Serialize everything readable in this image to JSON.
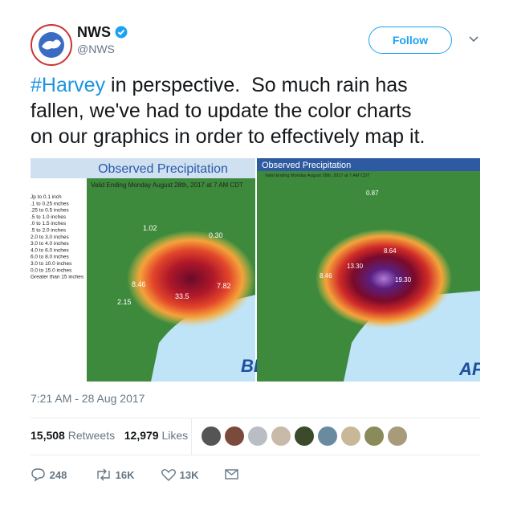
{
  "header": {
    "name": "NWS",
    "handle": "@NWS",
    "follow": "Follow"
  },
  "tweet": {
    "hashtag": "#Harvey",
    "text_lines": [
      "in perspective.  So much rain has",
      "fallen, we've had to update the color charts",
      "on our graphics in order to effectively map it."
    ]
  },
  "images": [
    {
      "title": "Observed Precipitation",
      "subtitle": "Valid Ending Monday August 28th, 2017 at 7 AM CDT",
      "legend": [
        "Jp to 0.1 inch",
        ".1 to 0.25 inches",
        ".25 to 0.5 inches",
        ".5 to 1.0 inches",
        ".0 to 1.5 inches",
        ".5 to 2.0 inches",
        "2.0 to 3.0 inches",
        "3.0 to 4.0 inches",
        "4.0 to 6.0 inches",
        "6.0 to 8.0 inches",
        "3.0 to 10.0 inches",
        "0.0 to 15.0 inches",
        "Greater than 15 inches"
      ],
      "labels": [
        "8.46",
        "33.5",
        "7.82",
        "2.15",
        "1.02",
        "0.30"
      ],
      "corner": "BE"
    },
    {
      "title": "Observed Precipitation",
      "subtitle": "Valid Ending Monday August 28th, 2017 at 7 AM CDT",
      "labels": [
        "13.30",
        "8.46",
        "19.30",
        "8.64",
        "0.87"
      ],
      "corner": "AF"
    }
  ],
  "timestamp": "7:21 AM - 28 Aug 2017",
  "stats": {
    "retweets": "15,508",
    "retweets_label": "Retweets",
    "likes": "12,979",
    "likes_label": "Likes"
  },
  "actions": {
    "replies": "248",
    "retweets": "16K",
    "likes": "13K"
  }
}
